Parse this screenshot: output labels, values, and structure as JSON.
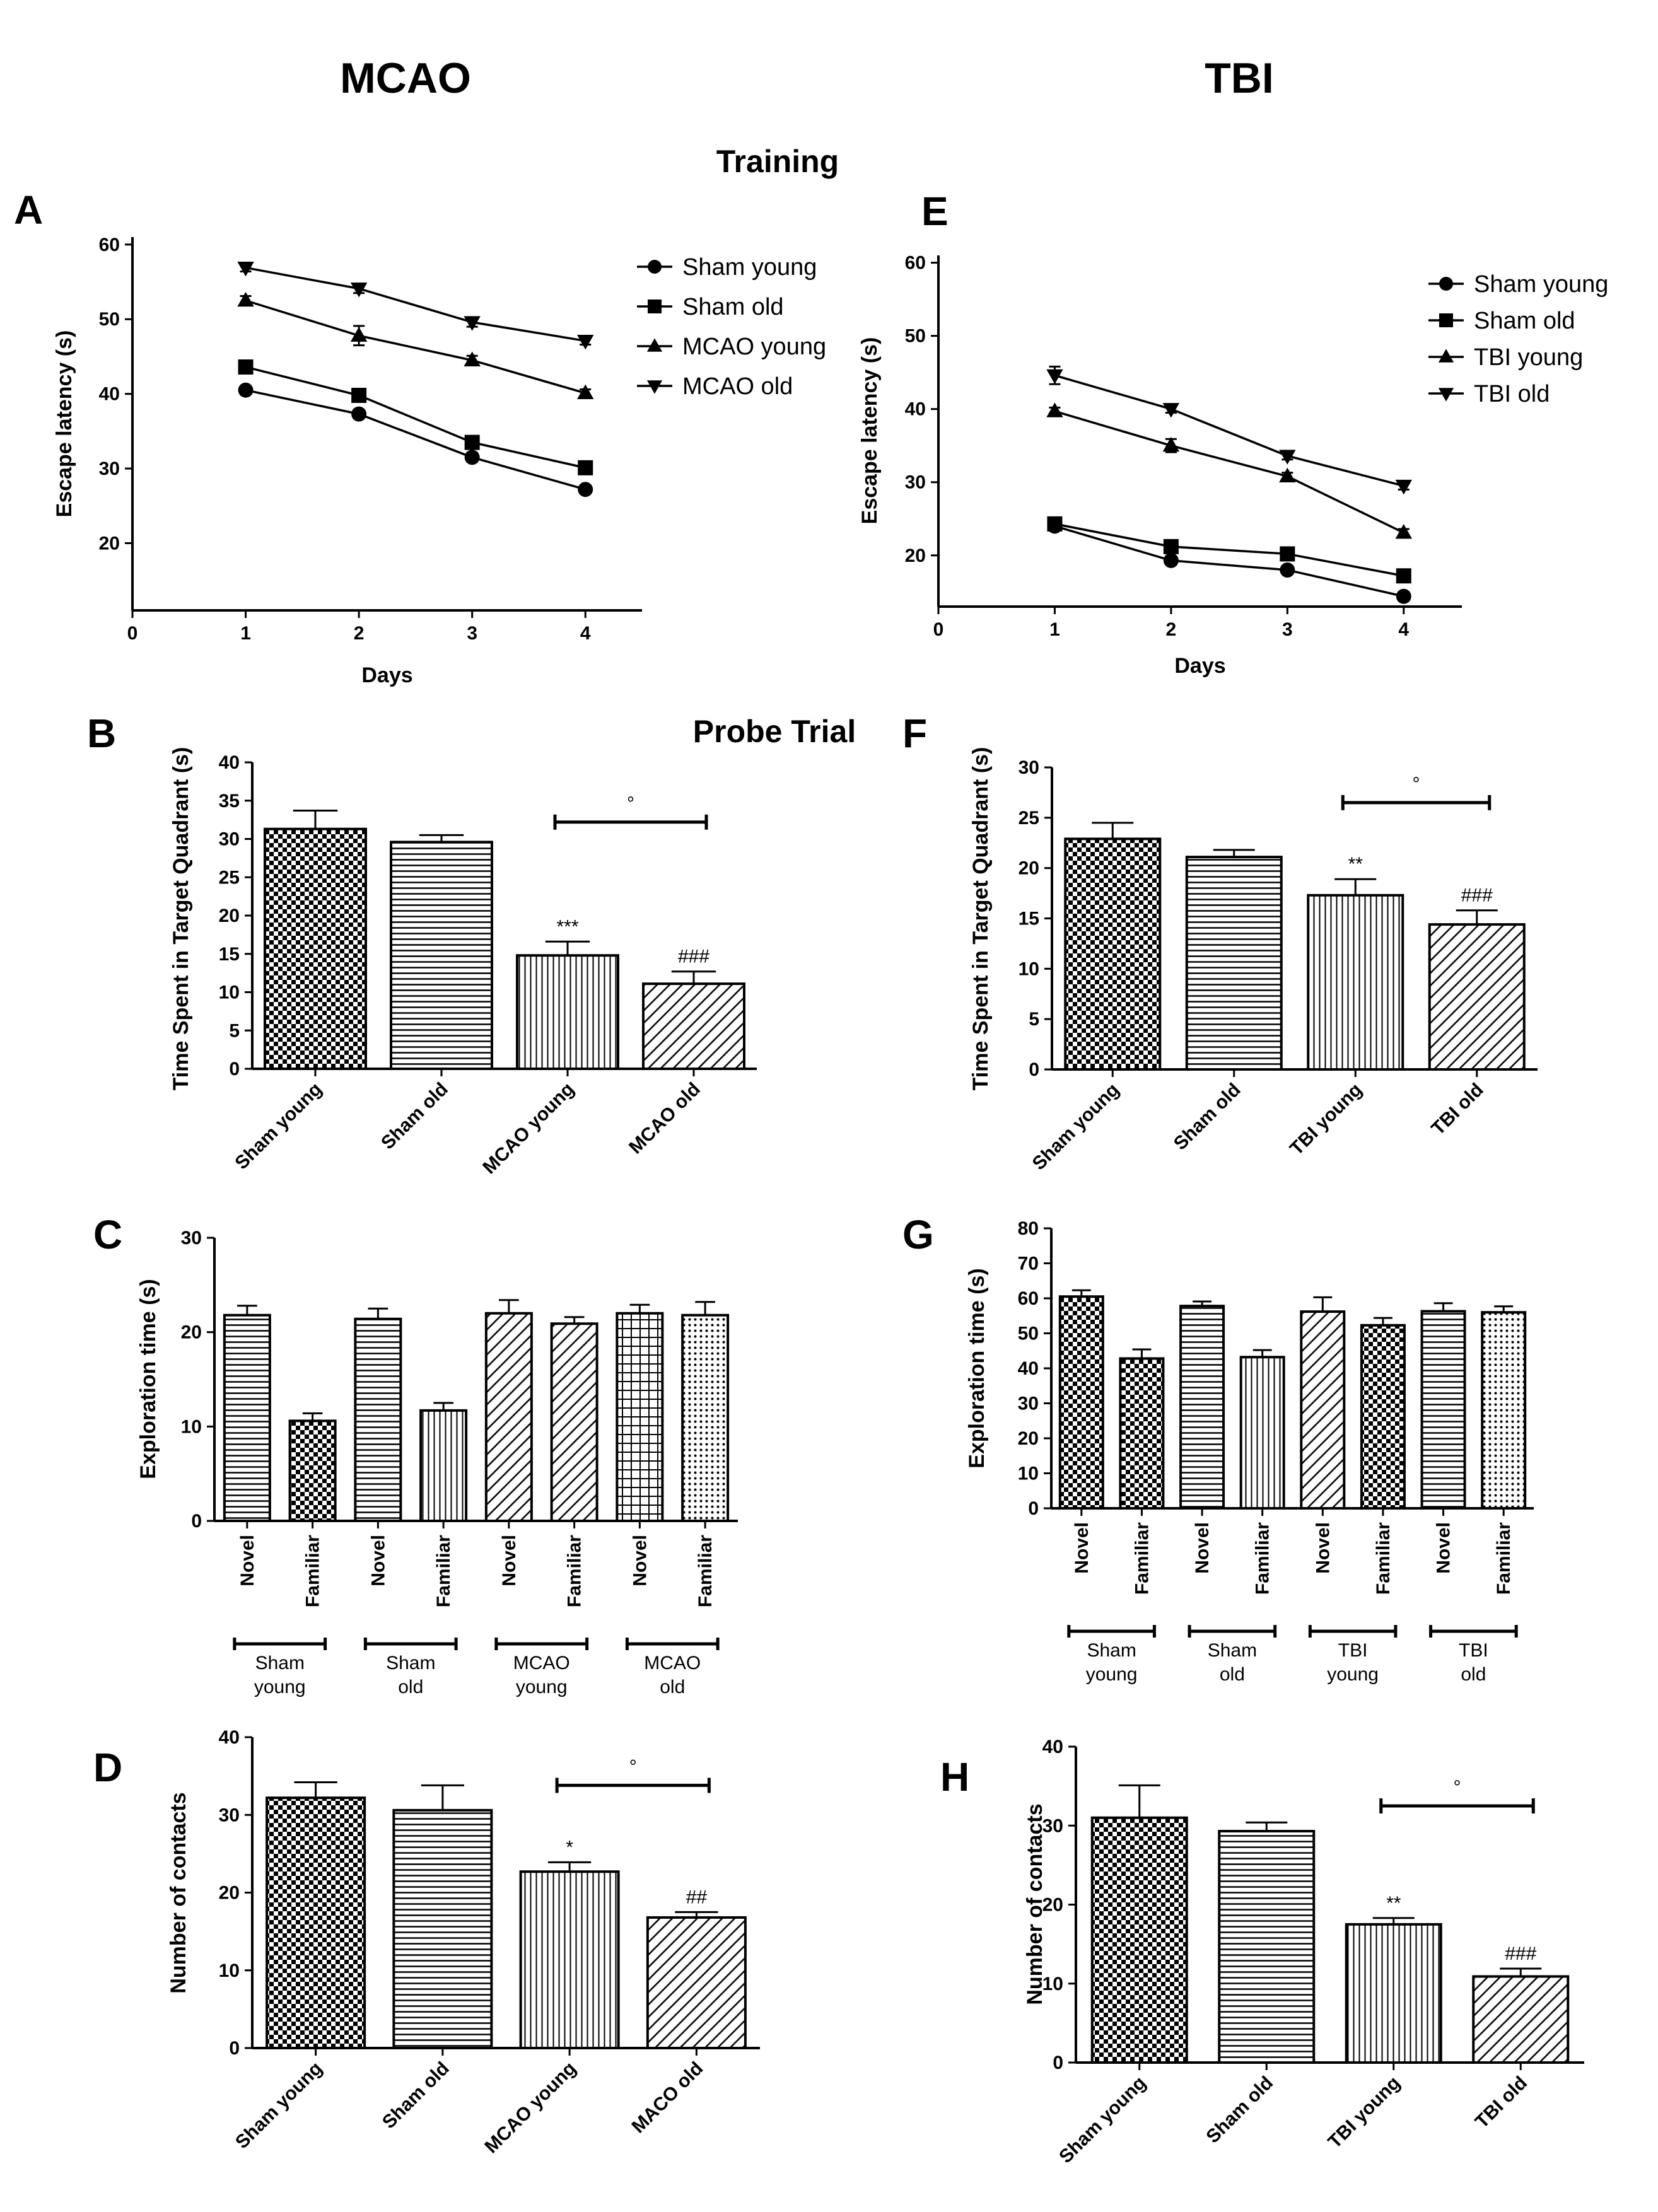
{
  "headers": {
    "left": "MCAO",
    "right": "TBI"
  },
  "section_labels": {
    "training": "Training",
    "probe": "Probe Trial"
  },
  "colors": {
    "ink": "#000000",
    "background": "#ffffff"
  },
  "chart_data": [
    {
      "panel": "A",
      "type": "line",
      "xlabel": "Days",
      "ylabel": "Escape latency (s)",
      "x": [
        1,
        2,
        3,
        4
      ],
      "xlim": [
        0,
        4.5
      ],
      "xticks": [
        0,
        1,
        2,
        3,
        4
      ],
      "ylim": [
        11,
        61
      ],
      "yticks": [
        20,
        30,
        40,
        50,
        60
      ],
      "legend_position": "right",
      "series": [
        {
          "name": "Sham young",
          "marker": "circle",
          "values": [
            40.5,
            37.3,
            31.5,
            27.2
          ],
          "errors": [
            0.5,
            0.6,
            0.6,
            0.5
          ]
        },
        {
          "name": "Sham old",
          "marker": "square",
          "values": [
            43.6,
            39.8,
            33.5,
            30.1
          ],
          "errors": [
            0.6,
            0.6,
            0.6,
            0.5
          ]
        },
        {
          "name": "MCAO young",
          "marker": "triangle-up",
          "values": [
            52.5,
            47.8,
            44.5,
            40.1
          ],
          "errors": [
            0.6,
            1.3,
            0.6,
            0.5
          ]
        },
        {
          "name": "MCAO old",
          "marker": "triangle-down",
          "values": [
            56.9,
            54.1,
            49.6,
            47.1
          ],
          "errors": [
            0.5,
            0.6,
            0.6,
            0.5
          ]
        }
      ]
    },
    {
      "panel": "E",
      "type": "line",
      "xlabel": "Days",
      "ylabel": "Escape latency (s)",
      "x": [
        1,
        2,
        3,
        4
      ],
      "xlim": [
        0,
        4.5
      ],
      "xticks": [
        0,
        1,
        2,
        3,
        4
      ],
      "ylim": [
        13,
        61
      ],
      "yticks": [
        20,
        30,
        40,
        50,
        60
      ],
      "legend_position": "right",
      "series": [
        {
          "name": "Sham young",
          "marker": "circle",
          "values": [
            24.0,
            19.3,
            18.0,
            14.4
          ],
          "errors": [
            0.5,
            0.5,
            0.5,
            0.6
          ]
        },
        {
          "name": "Sham old",
          "marker": "square",
          "values": [
            24.3,
            21.2,
            20.2,
            17.2
          ],
          "errors": [
            0.6,
            0.6,
            0.5,
            0.6
          ]
        },
        {
          "name": "TBI young",
          "marker": "triangle-up",
          "values": [
            39.7,
            35.0,
            30.8,
            23.1
          ],
          "errors": [
            0.5,
            0.9,
            0.5,
            0.5
          ]
        },
        {
          "name": "TBI old",
          "marker": "triangle-down",
          "values": [
            44.6,
            40.0,
            33.6,
            29.5
          ],
          "errors": [
            1.2,
            0.5,
            0.5,
            0.5
          ]
        }
      ]
    },
    {
      "panel": "B",
      "type": "bar",
      "ylabel": "Time Spent in Target Quadrant (s)",
      "categories": [
        "Sham young",
        "Sham old",
        "MCAO young",
        "MCAO old"
      ],
      "values": [
        31.3,
        29.6,
        14.8,
        11.1
      ],
      "errors": [
        2.4,
        0.9,
        1.8,
        1.6
      ],
      "fills": [
        "checker",
        "hlines",
        "vlines",
        "diag"
      ],
      "ylim": [
        0,
        40
      ],
      "yticks": [
        0,
        5,
        10,
        15,
        20,
        25,
        30,
        35,
        40
      ],
      "annotations": [
        {
          "bar": 2,
          "text": "***"
        },
        {
          "bar": 3,
          "text": "###"
        }
      ],
      "bracket": {
        "from": 2,
        "to": 3,
        "y": 32.2,
        "text": "°"
      }
    },
    {
      "panel": "F",
      "type": "bar",
      "ylabel": "Time Spent in Target Quadrant (s)",
      "categories": [
        "Sham young",
        "Sham old",
        "TBI young",
        "TBI old"
      ],
      "values": [
        22.9,
        21.1,
        17.3,
        14.4
      ],
      "errors": [
        1.6,
        0.7,
        1.6,
        1.4
      ],
      "fills": [
        "checker",
        "hlines",
        "vlines",
        "diag"
      ],
      "ylim": [
        0,
        30
      ],
      "yticks": [
        0,
        5,
        10,
        15,
        20,
        25,
        30
      ],
      "annotations": [
        {
          "bar": 2,
          "text": "**"
        },
        {
          "bar": 3,
          "text": "###"
        }
      ],
      "bracket": {
        "from": 2,
        "to": 3,
        "y": 26.5,
        "text": "°"
      }
    },
    {
      "panel": "C",
      "type": "bar",
      "ylabel": "Exploration time (s)",
      "categories": [
        "Novel",
        "Familiar",
        "Novel",
        "Familiar",
        "Novel",
        "Familiar",
        "Novel",
        "Familiar"
      ],
      "values": [
        21.8,
        10.6,
        21.4,
        11.7,
        22.0,
        20.9,
        22.0,
        21.8
      ],
      "errors": [
        1.0,
        0.8,
        1.1,
        0.8,
        1.4,
        0.7,
        0.9,
        1.4
      ],
      "fills": [
        "hlines",
        "checker",
        "hlines",
        "vlines",
        "diag",
        "diag",
        "grid",
        "dots"
      ],
      "ylim": [
        0,
        30
      ],
      "yticks": [
        0,
        10,
        20,
        30
      ],
      "groups": [
        {
          "from": 0,
          "to": 1,
          "line1": "Sham",
          "line2": "young"
        },
        {
          "from": 2,
          "to": 3,
          "line1": "Sham",
          "line2": "old"
        },
        {
          "from": 4,
          "to": 5,
          "line1": "MCAO",
          "line2": "young"
        },
        {
          "from": 6,
          "to": 7,
          "line1": "MCAO",
          "line2": "old"
        }
      ]
    },
    {
      "panel": "G",
      "type": "bar",
      "ylabel": "Exploration time (s)",
      "categories": [
        "Novel",
        "Familiar",
        "Novel",
        "Familiar",
        "Novel",
        "Familiar",
        "Novel",
        "Familiar"
      ],
      "values": [
        60.5,
        42.8,
        57.8,
        43.2,
        56.2,
        52.3,
        56.3,
        56.0
      ],
      "errors": [
        1.8,
        2.6,
        1.3,
        2.0,
        4.1,
        2.1,
        2.3,
        1.7
      ],
      "fills": [
        "checker",
        "checker",
        "hlines",
        "vlines",
        "diag",
        "checker",
        "hlines",
        "dots"
      ],
      "ylim": [
        0,
        80
      ],
      "yticks": [
        0,
        10,
        20,
        30,
        40,
        50,
        60,
        70,
        80
      ],
      "groups": [
        {
          "from": 0,
          "to": 1,
          "line1": "Sham",
          "line2": "young"
        },
        {
          "from": 2,
          "to": 3,
          "line1": "Sham",
          "line2": "old"
        },
        {
          "from": 4,
          "to": 5,
          "line1": "TBI",
          "line2": "young"
        },
        {
          "from": 6,
          "to": 7,
          "line1": "TBI",
          "line2": "old"
        }
      ]
    },
    {
      "panel": "D",
      "type": "bar",
      "ylabel": "Number of contacts",
      "categories": [
        "Sham young",
        "Sham old",
        "MCAO young",
        "MACO old"
      ],
      "values": [
        32.2,
        30.6,
        22.7,
        16.8
      ],
      "errors": [
        2.0,
        3.2,
        1.2,
        0.7
      ],
      "fills": [
        "checker",
        "hlines",
        "vlines",
        "diag"
      ],
      "ylim": [
        0,
        40
      ],
      "yticks": [
        0,
        10,
        20,
        30,
        40
      ],
      "annotations": [
        {
          "bar": 2,
          "text": "*"
        },
        {
          "bar": 3,
          "text": "##"
        }
      ],
      "bracket": {
        "from": 2,
        "to": 3,
        "y": 33.8,
        "text": "°"
      }
    },
    {
      "panel": "H",
      "type": "bar",
      "ylabel": "Number of contacts",
      "categories": [
        "Sham young",
        "Sham old",
        "TBI young",
        "TBI old"
      ],
      "values": [
        31.0,
        29.3,
        17.5,
        10.9
      ],
      "errors": [
        4.1,
        1.1,
        0.8,
        1.0
      ],
      "fills": [
        "checker",
        "hlines",
        "vlines",
        "diag"
      ],
      "ylim": [
        0,
        40
      ],
      "yticks": [
        0,
        10,
        20,
        30,
        40
      ],
      "annotations": [
        {
          "bar": 2,
          "text": "**"
        },
        {
          "bar": 3,
          "text": "###"
        }
      ],
      "bracket": {
        "from": 2,
        "to": 3,
        "y": 32.5,
        "text": "°"
      }
    }
  ]
}
